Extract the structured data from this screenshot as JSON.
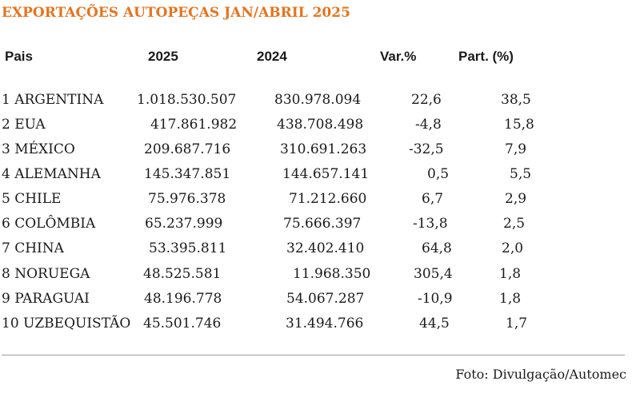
{
  "title": "EXPORTAÇÕES AUTOPEÇAS JAN/ABRIL 2025",
  "headers": {
    "country": "Pais",
    "y2025": "2025",
    "y2024": "2024",
    "var": "Var.%",
    "part": "Part. (%)"
  },
  "rows": [
    {
      "country": "1 ARGENTINA",
      "y2025": "1.018.530.507",
      "y2024": "830.978.094",
      "var": "22,6",
      "part": "38,5"
    },
    {
      "country": "2 EUA",
      "y2025": "417.861.982",
      "y2024": "438.708.498",
      "var": "-4,8",
      "part": "15,8"
    },
    {
      "country": "3 MÉXICO",
      "y2025": "209.687.716",
      "y2024": "310.691.263",
      "var": "-32,5",
      "part": "7,9"
    },
    {
      "country": "4 ALEMANHA",
      "y2025": "145.347.851",
      "y2024": "144.657.141",
      "var": "0,5",
      "part": "5,5"
    },
    {
      "country": "5 CHILE",
      "y2025": "75.976.378",
      "y2024": "71.212.660",
      "var": "6,7",
      "part": "2,9"
    },
    {
      "country": "6 COLÔMBIA",
      "y2025": "65.237.999",
      "y2024": "75.666.397",
      "var": "-13,8",
      "part": "2,5"
    },
    {
      "country": "7 CHINA",
      "y2025": "53.395.811",
      "y2024": "32.402.410",
      "var": "64,8",
      "part": "2,0"
    },
    {
      "country": "8 NORUEGA",
      "y2025": "48.525.581",
      "y2024": "11.968.350",
      "var": "305,4",
      "part": "1,8"
    },
    {
      "country": "9 PARAGUAI",
      "y2025": "48.196.778",
      "y2024": "54.067.287",
      "var": "-10,9",
      "part": "1,8"
    },
    {
      "country": "10 UZBEQUISTÃO",
      "y2025": "45.501.746",
      "y2024": "31.494.766",
      "var": "44,5",
      "part": "1,7"
    }
  ],
  "credit": "Foto: Divulgação/Automec",
  "colors": {
    "title": "#e8731c",
    "text": "#1a1a1a",
    "divider": "#9a9a9a"
  }
}
